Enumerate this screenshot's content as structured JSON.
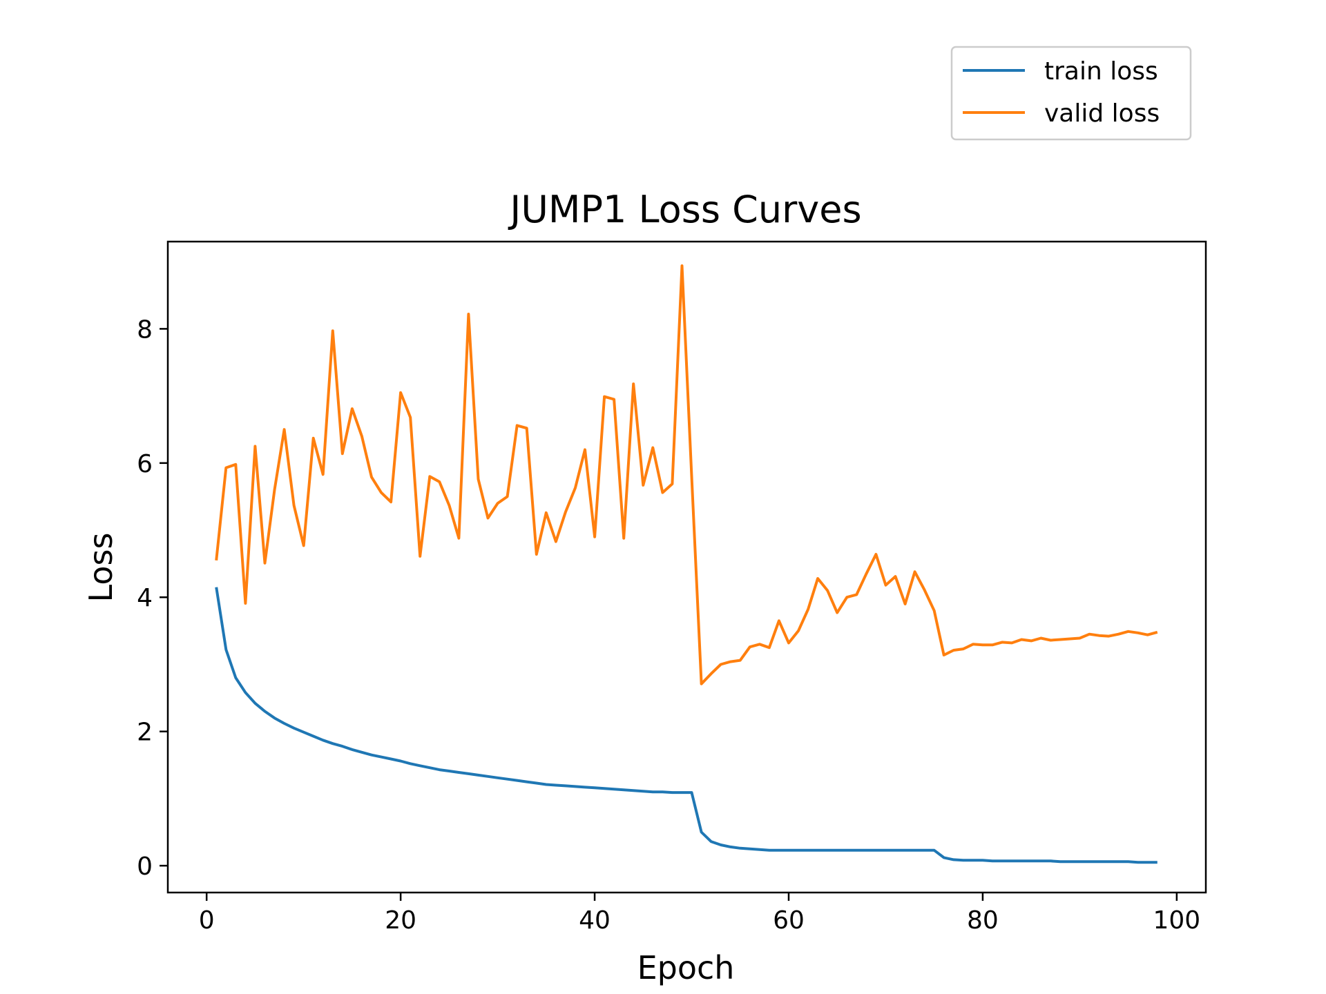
{
  "chart_data": {
    "type": "line",
    "title": "JUMP1 Loss Curves",
    "xlabel": "Epoch",
    "ylabel": "Loss",
    "xlim": [
      -4,
      103
    ],
    "ylim": [
      -0.4,
      9.3
    ],
    "xticks": [
      0,
      20,
      40,
      60,
      80,
      100
    ],
    "yticks": [
      0,
      2,
      4,
      6,
      8
    ],
    "grid": false,
    "legend_position": "top-right, outside plot area",
    "series": [
      {
        "name": "train loss",
        "color": "#1f77b4",
        "x": [
          1,
          2,
          3,
          4,
          5,
          6,
          7,
          8,
          9,
          10,
          11,
          12,
          13,
          14,
          15,
          16,
          17,
          18,
          19,
          20,
          21,
          22,
          23,
          24,
          25,
          26,
          27,
          28,
          29,
          30,
          31,
          32,
          33,
          34,
          35,
          36,
          37,
          38,
          39,
          40,
          41,
          42,
          43,
          44,
          45,
          46,
          47,
          48,
          49,
          50,
          51,
          52,
          53,
          54,
          55,
          56,
          57,
          58,
          59,
          60,
          61,
          62,
          63,
          64,
          65,
          66,
          67,
          68,
          69,
          70,
          71,
          72,
          73,
          74,
          75,
          76,
          77,
          78,
          79,
          80,
          81,
          82,
          83,
          84,
          85,
          86,
          87,
          88,
          89,
          90,
          91,
          92,
          93,
          94,
          95,
          96,
          97,
          98
        ],
        "y": [
          4.15,
          3.22,
          2.8,
          2.58,
          2.42,
          2.3,
          2.2,
          2.12,
          2.05,
          1.99,
          1.93,
          1.87,
          1.82,
          1.78,
          1.73,
          1.69,
          1.65,
          1.62,
          1.59,
          1.56,
          1.52,
          1.49,
          1.46,
          1.43,
          1.41,
          1.39,
          1.37,
          1.35,
          1.33,
          1.31,
          1.29,
          1.27,
          1.25,
          1.23,
          1.21,
          1.2,
          1.19,
          1.18,
          1.17,
          1.16,
          1.15,
          1.14,
          1.13,
          1.12,
          1.11,
          1.1,
          1.1,
          1.09,
          1.09,
          1.09,
          0.5,
          0.36,
          0.31,
          0.28,
          0.26,
          0.25,
          0.24,
          0.23,
          0.23,
          0.23,
          0.23,
          0.23,
          0.23,
          0.23,
          0.23,
          0.23,
          0.23,
          0.23,
          0.23,
          0.23,
          0.23,
          0.23,
          0.23,
          0.23,
          0.23,
          0.12,
          0.09,
          0.08,
          0.08,
          0.08,
          0.07,
          0.07,
          0.07,
          0.07,
          0.07,
          0.07,
          0.07,
          0.06,
          0.06,
          0.06,
          0.06,
          0.06,
          0.06,
          0.06,
          0.06,
          0.05,
          0.05,
          0.05
        ]
      },
      {
        "name": "valid loss",
        "color": "#ff7f0e",
        "x": [
          1,
          2,
          3,
          4,
          5,
          6,
          7,
          8,
          9,
          10,
          11,
          12,
          13,
          14,
          15,
          16,
          17,
          18,
          19,
          20,
          21,
          22,
          23,
          24,
          25,
          26,
          27,
          28,
          29,
          30,
          31,
          32,
          33,
          34,
          35,
          36,
          37,
          38,
          39,
          40,
          41,
          42,
          43,
          44,
          45,
          46,
          47,
          48,
          49,
          50,
          51,
          52,
          53,
          54,
          55,
          56,
          57,
          58,
          59,
          60,
          61,
          62,
          63,
          64,
          65,
          66,
          67,
          68,
          69,
          70,
          71,
          72,
          73,
          74,
          75,
          76,
          77,
          78,
          79,
          80,
          81,
          82,
          83,
          84,
          85,
          86,
          87,
          88,
          89,
          90,
          91,
          92,
          93,
          94,
          95,
          96,
          97,
          98
        ],
        "y": [
          4.55,
          5.93,
          5.98,
          3.91,
          6.25,
          4.51,
          5.6,
          6.5,
          5.37,
          4.77,
          6.37,
          5.83,
          7.97,
          6.14,
          6.81,
          6.4,
          5.79,
          5.56,
          5.42,
          7.05,
          6.68,
          4.61,
          5.8,
          5.72,
          5.37,
          4.88,
          8.22,
          5.76,
          5.18,
          5.4,
          5.5,
          6.56,
          6.52,
          4.64,
          5.26,
          4.83,
          5.27,
          5.63,
          6.2,
          4.9,
          6.99,
          6.95,
          4.88,
          7.18,
          5.67,
          6.23,
          5.56,
          5.69,
          8.94,
          5.8,
          2.71,
          2.86,
          3.0,
          3.04,
          3.06,
          3.26,
          3.3,
          3.25,
          3.65,
          3.32,
          3.5,
          3.82,
          4.28,
          4.1,
          3.77,
          4.0,
          4.04,
          4.35,
          4.64,
          4.18,
          4.31,
          3.9,
          4.38,
          4.11,
          3.8,
          3.14,
          3.21,
          3.23,
          3.3,
          3.29,
          3.29,
          3.33,
          3.32,
          3.37,
          3.35,
          3.39,
          3.36,
          3.37,
          3.38,
          3.39,
          3.45,
          3.43,
          3.42,
          3.45,
          3.49,
          3.47,
          3.44,
          3.48
        ]
      }
    ]
  }
}
